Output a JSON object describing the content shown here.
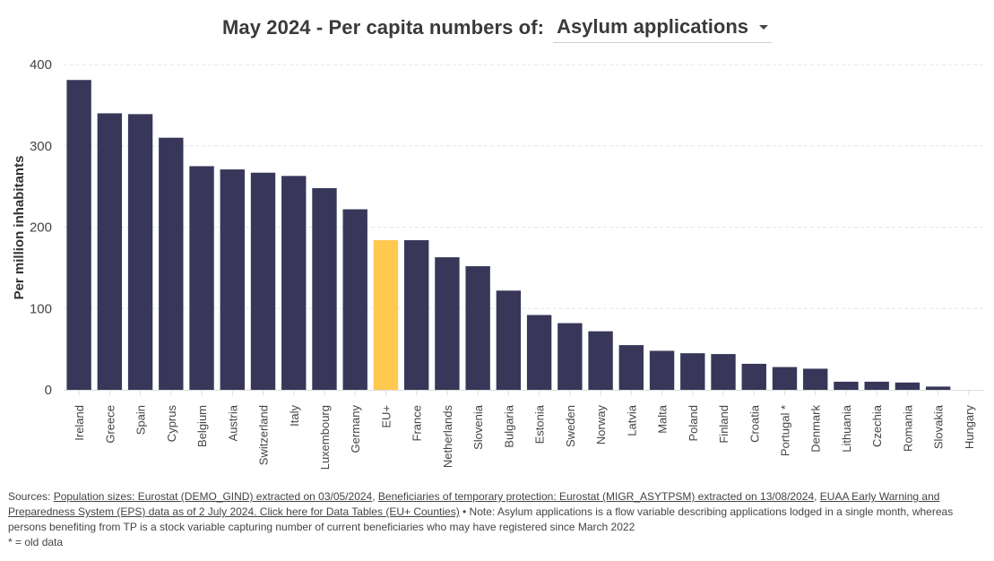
{
  "header": {
    "title_prefix": "May 2024 - Per capita numbers of:",
    "selected_indicator": "Asylum applications"
  },
  "chart_data": {
    "type": "bar",
    "title": "May 2024 - Per capita numbers of: Asylum applications",
    "xlabel": "",
    "ylabel": "Per million inhabitants",
    "ylim": [
      0,
      400
    ],
    "yticks": [
      0,
      100,
      200,
      300,
      400
    ],
    "grid": true,
    "categories": [
      "Ireland",
      "Greece",
      "Spain",
      "Cyprus",
      "Belgium",
      "Austria",
      "Switzerland",
      "Italy",
      "Luxembourg",
      "Germany",
      "EU+",
      "France",
      "Netherlands",
      "Slovenia",
      "Bulgaria",
      "Estonia",
      "Sweden",
      "Norway",
      "Latvia",
      "Malta",
      "Poland",
      "Finland",
      "Croatia",
      "Portugal *",
      "Denmark",
      "Lithuania",
      "Czechia",
      "Romania",
      "Slovakia",
      "Hungary"
    ],
    "values": [
      381,
      340,
      339,
      310,
      275,
      271,
      267,
      263,
      248,
      222,
      184,
      184,
      163,
      152,
      122,
      92,
      82,
      72,
      55,
      48,
      45,
      44,
      32,
      28,
      26,
      10,
      10,
      9,
      4,
      0
    ],
    "highlight_category": "EU+",
    "colors": {
      "bar": "#383759",
      "highlight": "#ffc84f",
      "grid": "#e6e6e6",
      "axis_text": "#444444"
    }
  },
  "footer": {
    "sources_prefix": "Sources: ",
    "link1": "Population sizes: Eurostat (DEMO_GIND) extracted on 03/05/2024",
    "sep1": ", ",
    "link2": "Beneficiaries of temporary protection: Eurostat (MIGR_ASYTPSM) extracted on 13/08/2024",
    "sep2": ", ",
    "link3": "EUAA Early Warning and Preparedness System (EPS) data as of 2 July 2024. Click here for Data Tables (EU+ Counties)",
    "note": " • Note: Asylum applications is a flow variable describing applications lodged in a single month, whereas persons benefiting from TP is a stock variable capturing number of current beneficiaries who may have registered since March 2022",
    "old_data_note": "* = old data"
  }
}
